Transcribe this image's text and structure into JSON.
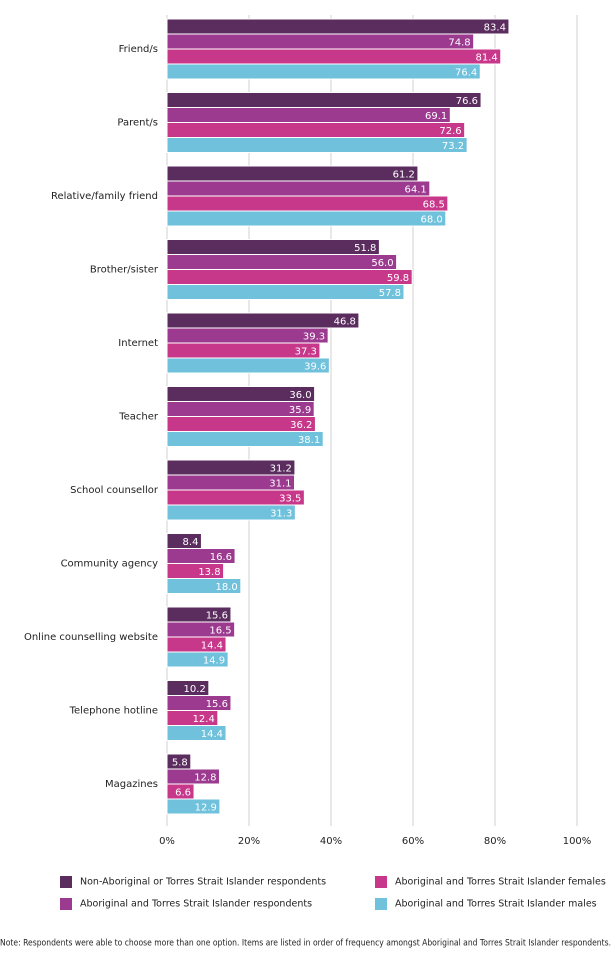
{
  "chart_data": {
    "type": "hbar",
    "categories": [
      "Friend/s",
      "Parent/s",
      "Relative/family friend",
      "Brother/sister",
      "Internet",
      "Teacher",
      "School counsellor",
      "Community agency",
      "Online counselling website",
      "Telephone hotline",
      "Magazines"
    ],
    "series": [
      {
        "name": "Non-Aboriginal or Torres Strait Islander respondents",
        "color": "#5b2d5e",
        "values": [
          83.4,
          76.6,
          61.2,
          51.8,
          46.8,
          36.0,
          31.2,
          8.4,
          15.6,
          10.2,
          5.8
        ],
        "value_labels": [
          "83.4",
          "76.6",
          "61.2",
          "51.8",
          "46.8",
          "36.0",
          "31.2",
          "8.4",
          "15.6",
          "10.2",
          "5.8"
        ]
      },
      {
        "name": "Aboriginal and Torres Strait Islander respondents",
        "color": "#9b3a8f",
        "values": [
          74.8,
          69.1,
          64.1,
          56.0,
          39.3,
          35.9,
          31.1,
          16.6,
          16.5,
          15.6,
          12.8
        ],
        "value_labels": [
          "74.8",
          "69.1",
          "64.1",
          "56.0",
          "39.3",
          "35.9",
          "31.1",
          "16.6",
          "16.5",
          "15.6",
          "12.8"
        ]
      },
      {
        "name": "Aboriginal and Torres Strait Islander females",
        "color": "#c8388a",
        "values": [
          81.4,
          72.6,
          68.5,
          59.8,
          37.3,
          36.2,
          33.5,
          13.8,
          14.4,
          12.4,
          6.6
        ],
        "value_labels": [
          "81.4",
          "72.6",
          "68.5",
          "59.8",
          "37.3",
          "36.2",
          "33.5",
          "13.8",
          "14.4",
          "12.4",
          "6.6"
        ]
      },
      {
        "name": "Aboriginal and Torres Strait Islander males",
        "color": "#6fc1dc",
        "values": [
          76.4,
          73.2,
          68.0,
          57.8,
          39.6,
          38.1,
          31.3,
          18.0,
          14.9,
          14.4,
          12.9
        ],
        "value_labels": [
          "76.4",
          "73.2",
          "68.0",
          "57.8",
          "39.6",
          "38.1",
          "31.3",
          "18.0",
          "14.9",
          "14.4",
          "12.9"
        ]
      }
    ],
    "xlim": [
      0,
      100
    ],
    "xticks": [
      {
        "value": 0,
        "label": "0%"
      },
      {
        "value": 20,
        "label": "20%"
      },
      {
        "value": 40,
        "label": "40%"
      },
      {
        "value": 60,
        "label": "60%"
      },
      {
        "value": 80,
        "label": "80%"
      },
      {
        "value": 100,
        "label": "100%"
      }
    ],
    "grid": true,
    "legend": "bottom",
    "note": "Note: Respondents were able to choose more than one option. Items are listed in order of frequency amongst Aboriginal and Torres Strait Islander respondents."
  }
}
